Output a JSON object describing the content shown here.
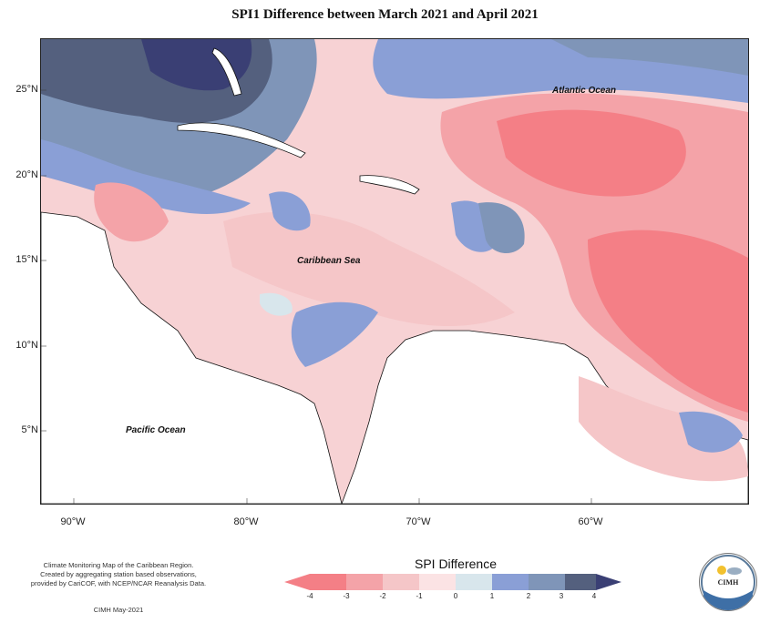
{
  "title": "SPI1 Difference between March 2021 and April 2021",
  "map": {
    "latitude_labels": [
      "25°N",
      "20°N",
      "15°N",
      "10°N",
      "5°N"
    ],
    "longitude_labels": [
      "90°W",
      "80°W",
      "70°W",
      "60°W"
    ],
    "region_labels": {
      "atlantic": "Atlantic Ocean",
      "caribbean": "Caribbean Sea",
      "pacific": "Pacific Ocean"
    }
  },
  "legend": {
    "title": "SPI Difference",
    "ticks": [
      "-4",
      "-3",
      "-2",
      "-1",
      "0",
      "1",
      "2",
      "3",
      "4"
    ],
    "colors": [
      "#f47f86",
      "#f4a3a8",
      "#f5c6c8",
      "#fbe3e4",
      "#d8e6ec",
      "#8a9fd6",
      "#7f95b8",
      "#54607e",
      "#3a3f74"
    ]
  },
  "credits": {
    "lines": [
      "Climate Monitoring Map of the Caribbean Region.",
      "Created by aggregating station based observations,",
      "provided by CariCOF, with NCEP/NCAR Reanalysis Data."
    ],
    "date": "CIMH May-2021"
  },
  "logo": {
    "text": "CIMH"
  }
}
